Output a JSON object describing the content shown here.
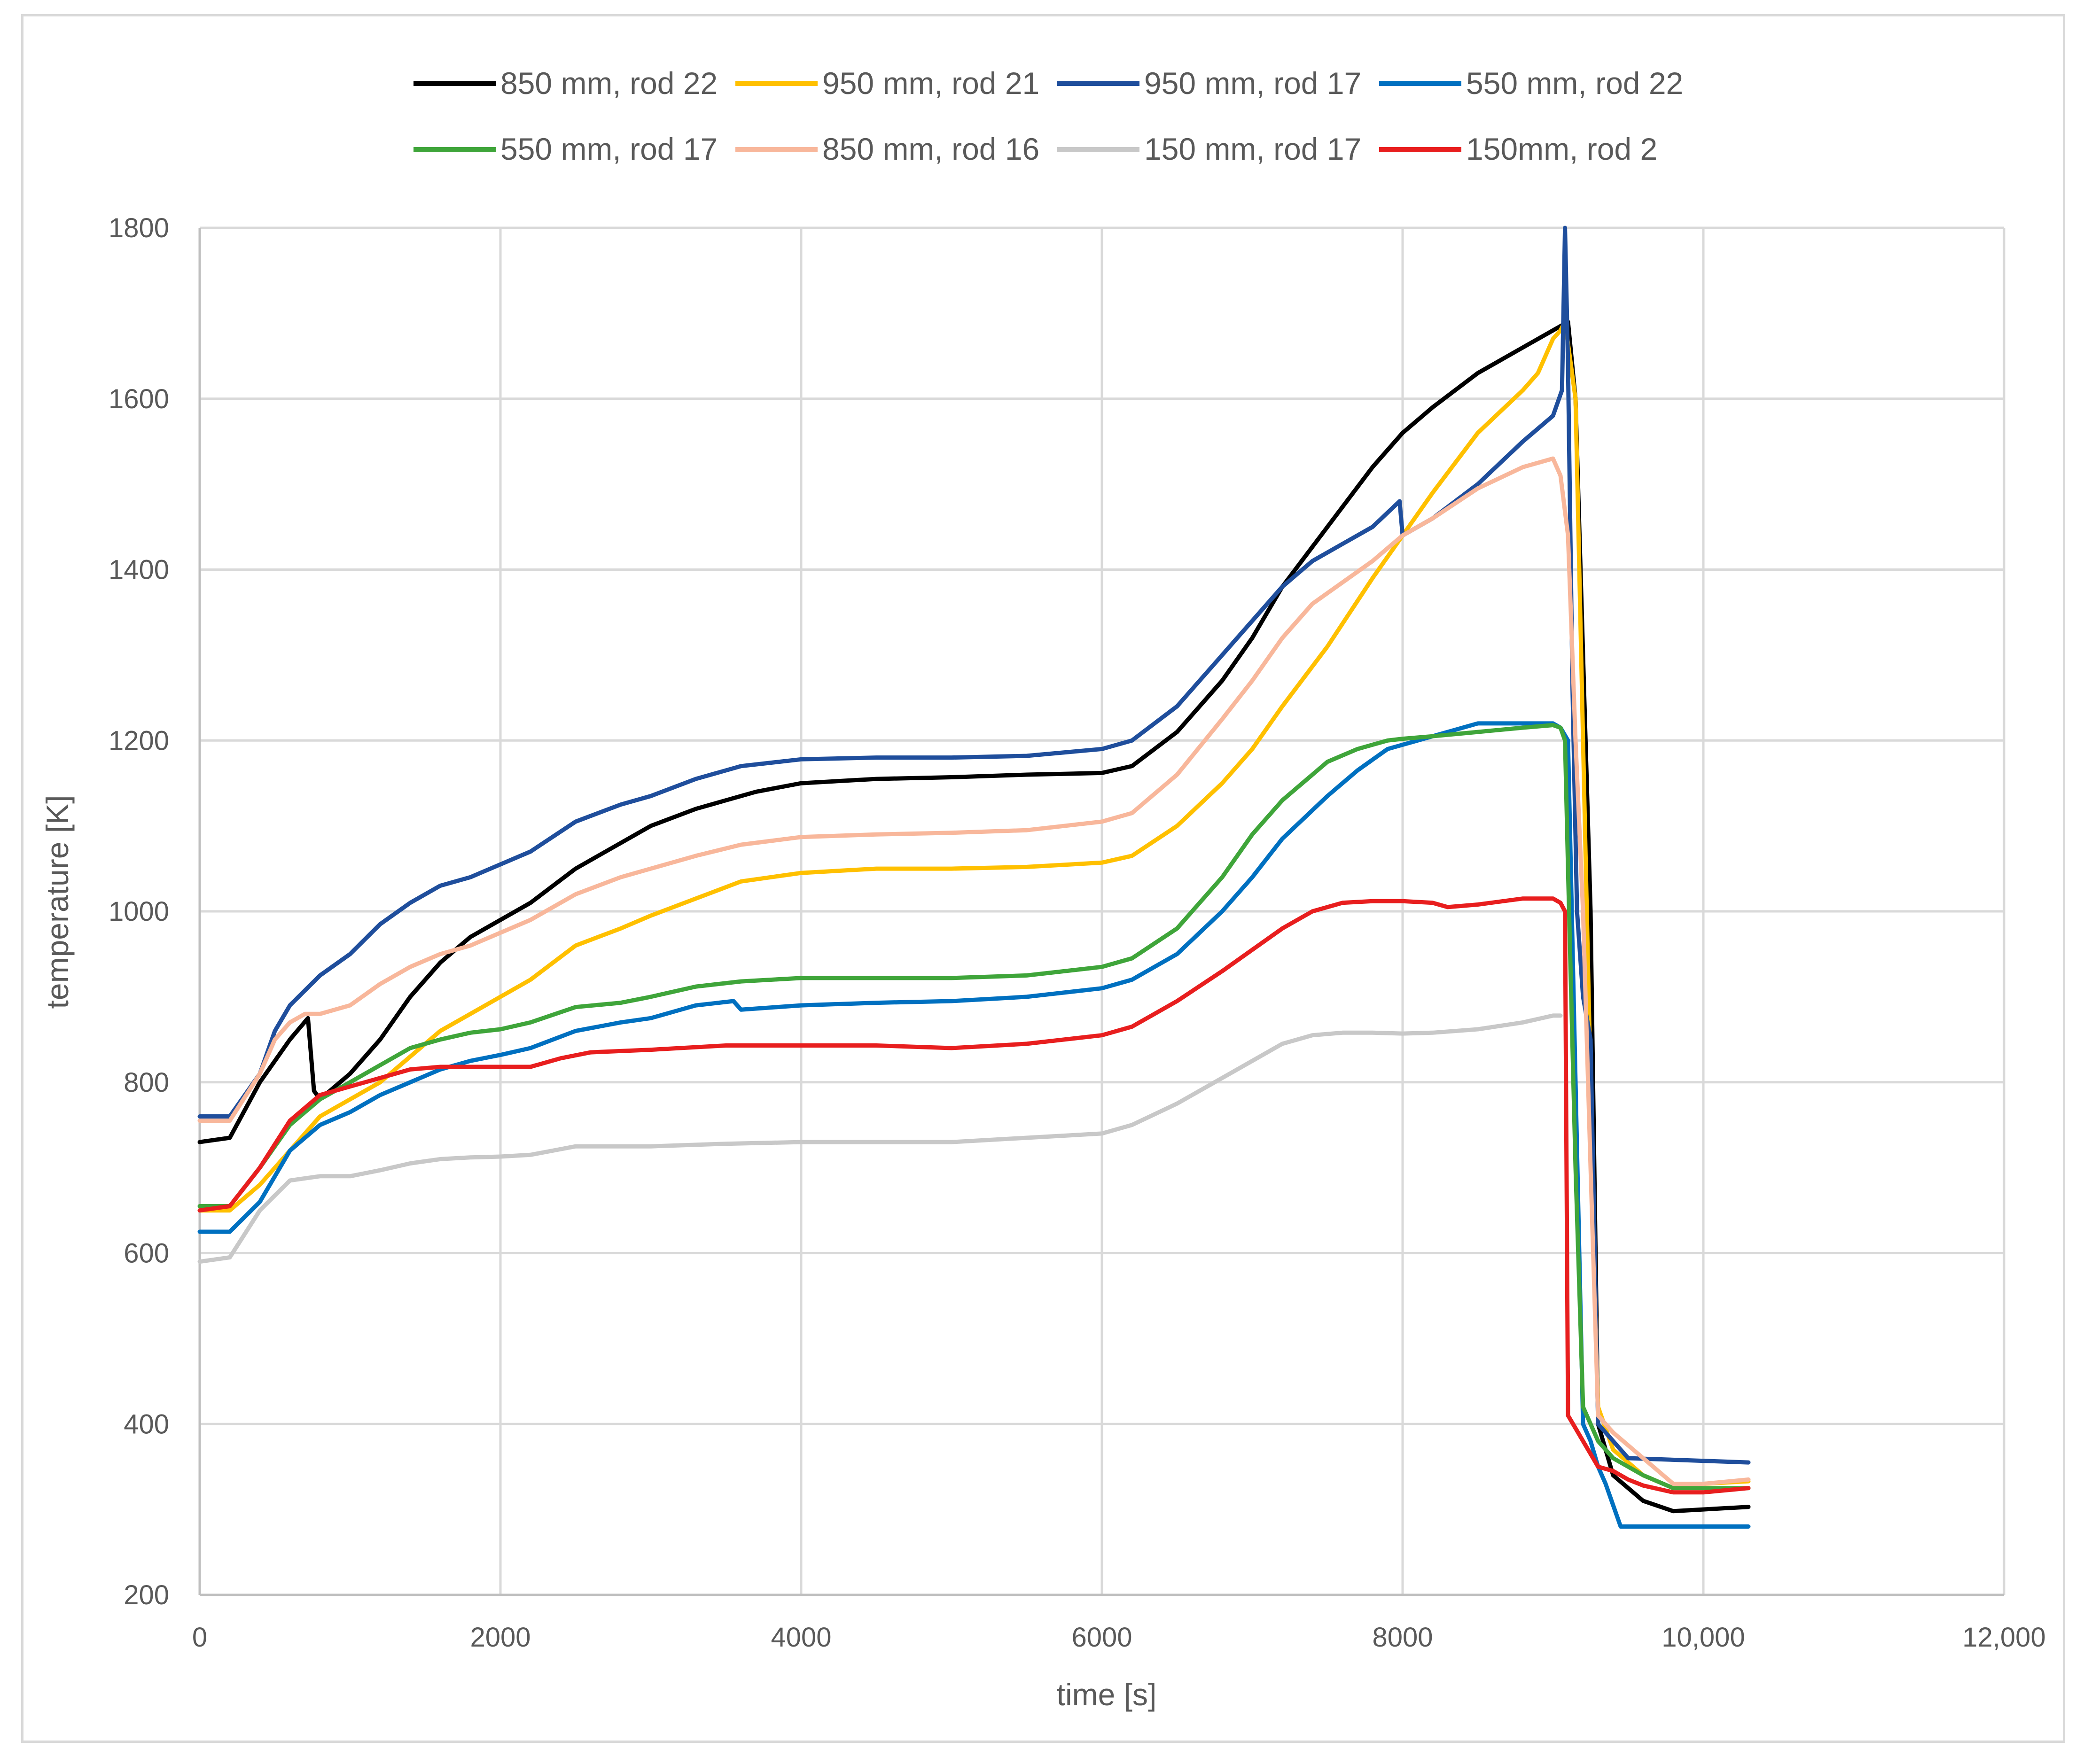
{
  "chart_data": {
    "type": "line",
    "title": "",
    "xlabel": "time [s]",
    "ylabel": "temperature [K]",
    "xlim": [
      0,
      12000
    ],
    "ylim": [
      200,
      1800
    ],
    "xticks": [
      0,
      2000,
      4000,
      6000,
      8000,
      10000,
      12000
    ],
    "xtick_labels": [
      "0",
      "2000",
      "4000",
      "6000",
      "8000",
      "10,000",
      "12,000"
    ],
    "yticks": [
      200,
      400,
      600,
      800,
      1000,
      1200,
      1400,
      1600,
      1800
    ],
    "ytick_labels": [
      "200",
      "400",
      "600",
      "800",
      "1000",
      "1200",
      "1400",
      "1600",
      "1800"
    ],
    "grid": true,
    "legend_position": "top",
    "series": [
      {
        "name": "850 mm, rod 22",
        "color": "#000000",
        "x": [
          0,
          200,
          400,
          600,
          720,
          760,
          800,
          1000,
          1200,
          1400,
          1600,
          1800,
          2000,
          2200,
          2500,
          2800,
          3000,
          3300,
          3500,
          3700,
          4000,
          4500,
          5000,
          5500,
          6000,
          6200,
          6500,
          6800,
          7000,
          7200,
          7500,
          7800,
          8000,
          8200,
          8500,
          8800,
          9000,
          9100,
          9150,
          9200,
          9250,
          9300,
          9400,
          9600,
          9800,
          10000,
          10300
        ],
        "y": [
          730,
          735,
          800,
          850,
          875,
          790,
          780,
          810,
          850,
          900,
          940,
          970,
          990,
          1010,
          1050,
          1080,
          1100,
          1120,
          1130,
          1140,
          1150,
          1155,
          1157,
          1160,
          1162,
          1170,
          1210,
          1270,
          1320,
          1380,
          1450,
          1520,
          1560,
          1590,
          1630,
          1660,
          1680,
          1690,
          1600,
          1300,
          1000,
          400,
          340,
          310,
          298,
          300,
          303
        ]
      },
      {
        "name": "950 mm, rod 21",
        "color": "#ffc000",
        "x": [
          0,
          200,
          400,
          600,
          800,
          1000,
          1200,
          1400,
          1600,
          1800,
          2000,
          2200,
          2500,
          2800,
          3000,
          3300,
          3600,
          4000,
          4500,
          5000,
          5500,
          6000,
          6200,
          6500,
          6800,
          7000,
          7200,
          7500,
          7800,
          8000,
          8200,
          8500,
          8800,
          8900,
          8950,
          9000,
          9050,
          9080,
          9150,
          9200,
          9250,
          9300,
          9400,
          9600,
          9800,
          10000,
          10300
        ],
        "y": [
          650,
          650,
          680,
          720,
          760,
          780,
          800,
          830,
          860,
          880,
          900,
          920,
          960,
          980,
          995,
          1015,
          1035,
          1045,
          1050,
          1050,
          1052,
          1057,
          1065,
          1100,
          1150,
          1190,
          1240,
          1310,
          1390,
          1440,
          1490,
          1560,
          1610,
          1630,
          1650,
          1670,
          1680,
          1690,
          1600,
          1200,
          800,
          420,
          370,
          340,
          325,
          330,
          333
        ]
      },
      {
        "name": "950 mm, rod 17",
        "color": "#1f4e9c",
        "x": [
          0,
          200,
          400,
          500,
          600,
          800,
          1000,
          1200,
          1400,
          1600,
          1800,
          2000,
          2200,
          2500,
          2800,
          3000,
          3300,
          3600,
          4000,
          4500,
          5000,
          5500,
          6000,
          6200,
          6500,
          6800,
          7000,
          7200,
          7400,
          7600,
          7800,
          7980,
          8000,
          8200,
          8500,
          8800,
          9000,
          9060,
          9080,
          9100,
          9130,
          9160,
          9200,
          9250,
          9300,
          9500,
          10300
        ],
        "y": [
          760,
          760,
          810,
          860,
          890,
          925,
          950,
          985,
          1010,
          1030,
          1040,
          1055,
          1070,
          1105,
          1125,
          1135,
          1155,
          1170,
          1178,
          1180,
          1180,
          1182,
          1190,
          1200,
          1240,
          1300,
          1340,
          1380,
          1410,
          1430,
          1450,
          1480,
          1440,
          1460,
          1500,
          1550,
          1580,
          1610,
          1800,
          1640,
          1260,
          1000,
          900,
          850,
          400,
          360,
          355
        ]
      },
      {
        "name": "550 mm, rod 22",
        "color": "#0070c0",
        "x": [
          0,
          200,
          400,
          600,
          800,
          1000,
          1200,
          1400,
          1600,
          1800,
          2000,
          2200,
          2500,
          2800,
          3000,
          3300,
          3550,
          3600,
          4000,
          4500,
          5000,
          5500,
          6000,
          6200,
          6500,
          6800,
          7000,
          7200,
          7500,
          7700,
          7900,
          8100,
          8300,
          8500,
          8800,
          9000,
          9050,
          9100,
          9150,
          9200,
          9250,
          9300,
          9350,
          9450,
          10300
        ],
        "y": [
          625,
          625,
          660,
          720,
          750,
          765,
          785,
          800,
          815,
          825,
          832,
          840,
          860,
          870,
          875,
          890,
          895,
          885,
          890,
          893,
          895,
          900,
          910,
          920,
          950,
          1000,
          1040,
          1085,
          1135,
          1165,
          1190,
          1200,
          1210,
          1220,
          1220,
          1220,
          1215,
          1200,
          800,
          400,
          380,
          350,
          330,
          280,
          280
        ]
      },
      {
        "name": "550 mm, rod 17",
        "color": "#3fa53a",
        "x": [
          0,
          200,
          400,
          600,
          800,
          1000,
          1200,
          1400,
          1600,
          1800,
          2000,
          2200,
          2500,
          2800,
          3000,
          3300,
          3600,
          4000,
          4500,
          5000,
          5500,
          6000,
          6200,
          6500,
          6800,
          7000,
          7200,
          7500,
          7700,
          7900,
          8000,
          8200,
          8500,
          8800,
          9000,
          9050,
          9080,
          9100,
          9150,
          9200,
          9250,
          9300,
          9400,
          9600,
          9800,
          10000,
          10300
        ],
        "y": [
          655,
          655,
          700,
          750,
          780,
          800,
          820,
          840,
          850,
          858,
          862,
          870,
          888,
          893,
          900,
          912,
          918,
          922,
          922,
          922,
          925,
          935,
          945,
          980,
          1040,
          1090,
          1130,
          1175,
          1190,
          1200,
          1202,
          1205,
          1210,
          1215,
          1218,
          1215,
          1200,
          1050,
          700,
          420,
          400,
          380,
          360,
          340,
          325,
          325,
          325
        ]
      },
      {
        "name": "850 mm, rod 16",
        "color": "#f8b79b",
        "x": [
          0,
          200,
          400,
          500,
          600,
          700,
          800,
          1000,
          1200,
          1400,
          1600,
          1800,
          2000,
          2200,
          2500,
          2800,
          3000,
          3300,
          3600,
          4000,
          4500,
          5000,
          5500,
          6000,
          6200,
          6500,
          6800,
          7000,
          7200,
          7400,
          7600,
          7800,
          8000,
          8200,
          8500,
          8800,
          9000,
          9050,
          9100,
          9150,
          9200,
          9250,
          9300,
          9400,
          9600,
          9800,
          10000,
          10300
        ],
        "y": [
          755,
          755,
          810,
          850,
          870,
          880,
          880,
          890,
          915,
          935,
          950,
          960,
          975,
          990,
          1020,
          1040,
          1050,
          1065,
          1078,
          1087,
          1090,
          1092,
          1095,
          1105,
          1115,
          1160,
          1225,
          1270,
          1320,
          1360,
          1385,
          1410,
          1440,
          1460,
          1495,
          1520,
          1530,
          1510,
          1440,
          1200,
          1000,
          700,
          410,
          390,
          360,
          330,
          330,
          335
        ]
      },
      {
        "name": "150 mm, rod 17",
        "color": "#c8c8c8",
        "x": [
          0,
          200,
          400,
          600,
          800,
          1000,
          1200,
          1400,
          1600,
          1800,
          2000,
          2200,
          2500,
          3000,
          3500,
          4000,
          4500,
          5000,
          5500,
          6000,
          6200,
          6500,
          6800,
          7000,
          7200,
          7400,
          7600,
          7800,
          8000,
          8200,
          8500,
          8800,
          9000,
          9050
        ],
        "y": [
          590,
          595,
          650,
          685,
          690,
          690,
          697,
          705,
          710,
          712,
          713,
          715,
          725,
          725,
          728,
          730,
          730,
          730,
          735,
          740,
          750,
          775,
          805,
          825,
          845,
          855,
          858,
          858,
          857,
          858,
          862,
          870,
          878,
          878
        ]
      },
      {
        "name": "150mm, rod 2",
        "color": "#e81e1e",
        "x": [
          0,
          200,
          400,
          600,
          800,
          1000,
          1200,
          1400,
          1600,
          1800,
          2000,
          2200,
          2400,
          2600,
          3000,
          3500,
          4000,
          4500,
          5000,
          5500,
          6000,
          6200,
          6500,
          6800,
          7000,
          7200,
          7400,
          7600,
          7800,
          8000,
          8200,
          8300,
          8500,
          8800,
          9000,
          9050,
          9080,
          9100,
          9150,
          9200,
          9250,
          9300,
          9400,
          9500,
          9600,
          9800,
          10000,
          10300
        ],
        "y": [
          650,
          655,
          700,
          755,
          785,
          795,
          805,
          815,
          818,
          818,
          818,
          818,
          828,
          835,
          838,
          843,
          843,
          843,
          840,
          845,
          855,
          865,
          895,
          930,
          955,
          980,
          1000,
          1010,
          1012,
          1012,
          1010,
          1005,
          1008,
          1015,
          1015,
          1010,
          1000,
          410,
          395,
          380,
          365,
          350,
          345,
          335,
          328,
          320,
          320,
          325
        ]
      }
    ]
  }
}
